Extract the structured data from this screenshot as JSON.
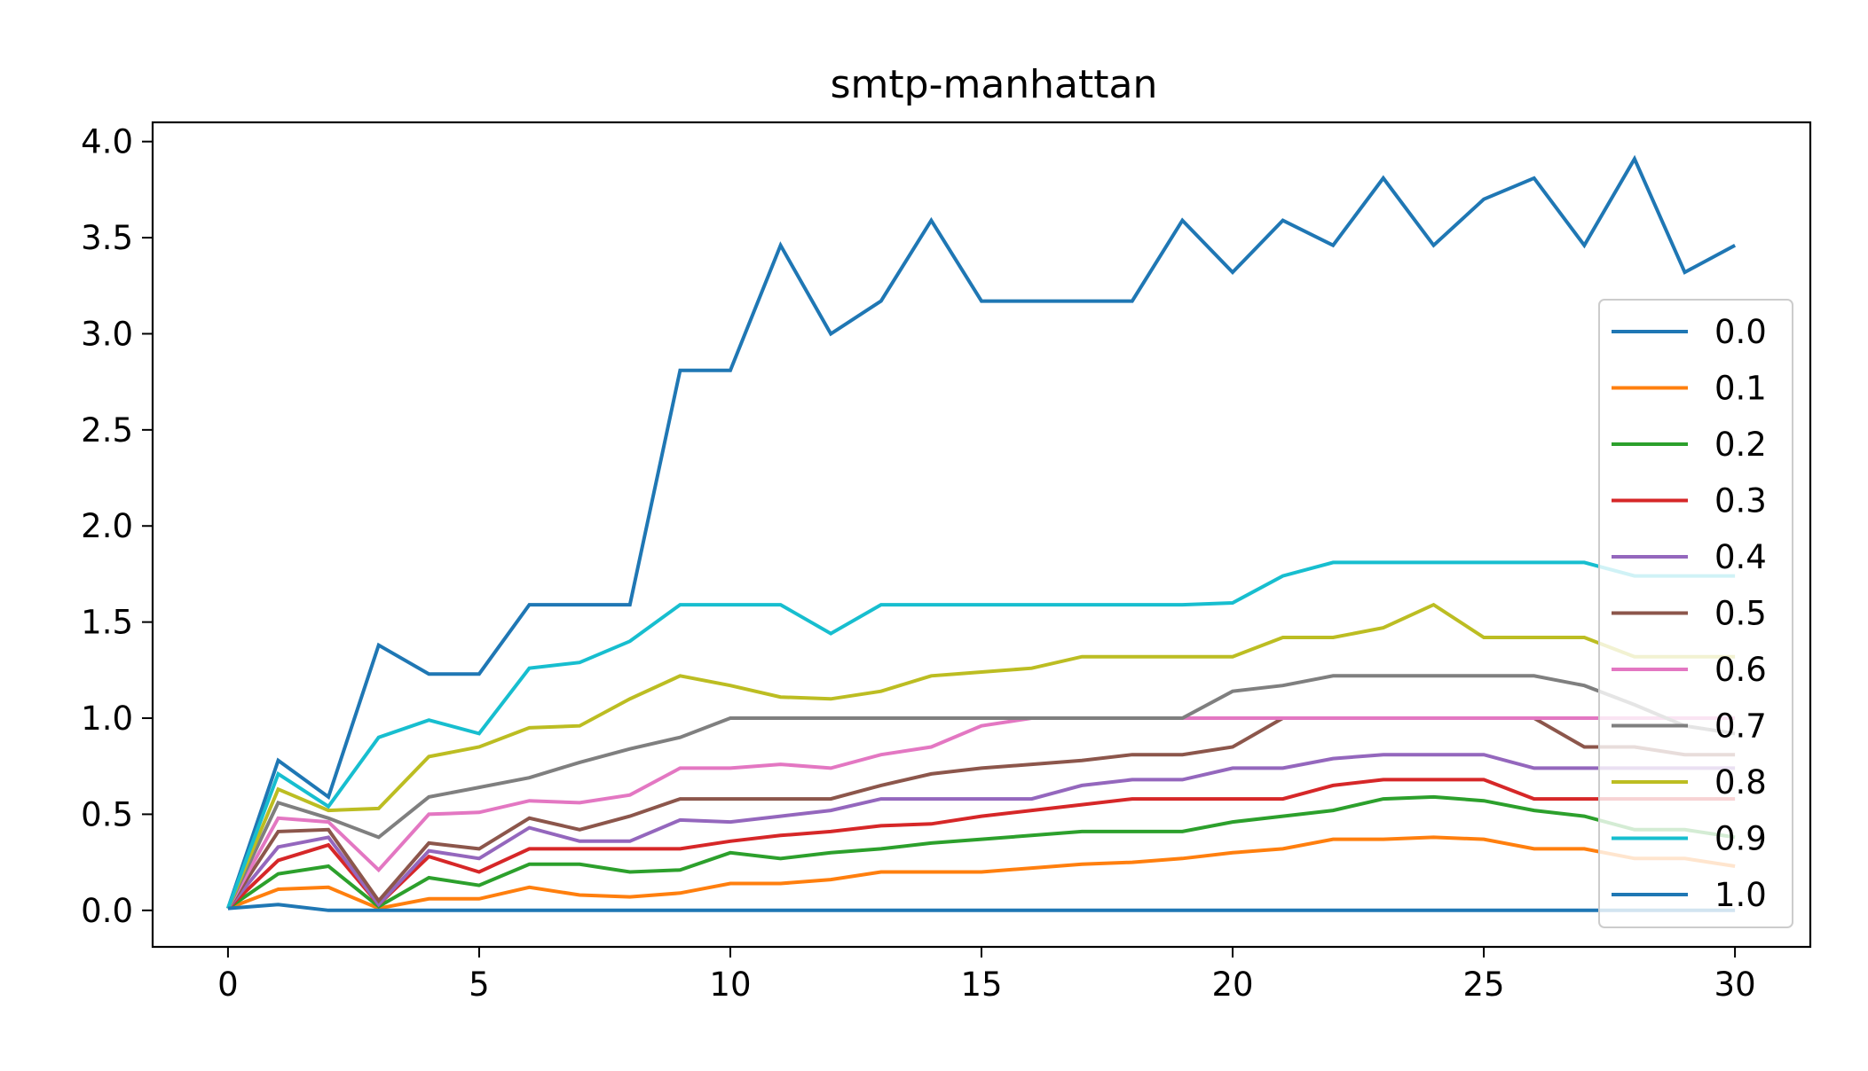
{
  "chart_data": {
    "type": "line",
    "title": "smtp-manhattan",
    "xlabel": "",
    "ylabel": "",
    "xlim": [
      -1.5,
      31.5
    ],
    "ylim": [
      -0.19,
      4.1
    ],
    "xticks": [
      0,
      5,
      10,
      15,
      20,
      25,
      30
    ],
    "yticks": [
      0.0,
      0.5,
      1.0,
      1.5,
      2.0,
      2.5,
      3.0,
      3.5,
      4.0
    ],
    "xtick_labels": [
      "0",
      "5",
      "10",
      "15",
      "20",
      "25",
      "30"
    ],
    "ytick_labels": [
      "0.0",
      "0.5",
      "1.0",
      "1.5",
      "2.0",
      "2.5",
      "3.0",
      "3.5",
      "4.0"
    ],
    "legend_position": "right",
    "grid": false,
    "x": [
      0,
      1,
      2,
      3,
      4,
      5,
      6,
      7,
      8,
      9,
      10,
      11,
      12,
      13,
      14,
      15,
      16,
      17,
      18,
      19,
      20,
      21,
      22,
      23,
      24,
      25,
      26,
      27,
      28,
      29,
      30
    ],
    "series": [
      {
        "name": "0.0",
        "color": "#1f77b4",
        "values": [
          0.01,
          0.78,
          0.59,
          1.38,
          1.23,
          1.23,
          1.59,
          1.59,
          1.59,
          2.81,
          2.81,
          3.46,
          3.0,
          3.17,
          3.59,
          3.17,
          3.17,
          3.17,
          3.17,
          3.59,
          3.32,
          3.59,
          3.46,
          3.81,
          3.46,
          3.7,
          3.81,
          3.46,
          3.91,
          3.32,
          3.46
        ]
      },
      {
        "name": "0.1",
        "color": "#ff7f0e",
        "values": [
          0.01,
          0.11,
          0.12,
          0.01,
          0.06,
          0.06,
          0.12,
          0.08,
          0.07,
          0.09,
          0.14,
          0.14,
          0.16,
          0.2,
          0.2,
          0.2,
          0.22,
          0.24,
          0.25,
          0.27,
          0.3,
          0.32,
          0.37,
          0.37,
          0.38,
          0.37,
          0.32,
          0.32,
          0.27,
          0.27,
          0.23
        ]
      },
      {
        "name": "0.2",
        "color": "#2ca02c",
        "values": [
          0.01,
          0.19,
          0.23,
          0.02,
          0.17,
          0.13,
          0.24,
          0.24,
          0.2,
          0.21,
          0.3,
          0.27,
          0.3,
          0.32,
          0.35,
          0.37,
          0.39,
          0.41,
          0.41,
          0.41,
          0.46,
          0.49,
          0.52,
          0.58,
          0.59,
          0.57,
          0.52,
          0.49,
          0.42,
          0.42,
          0.38
        ]
      },
      {
        "name": "0.3",
        "color": "#d62728",
        "values": [
          0.01,
          0.26,
          0.34,
          0.03,
          0.28,
          0.2,
          0.32,
          0.32,
          0.32,
          0.32,
          0.36,
          0.39,
          0.41,
          0.44,
          0.45,
          0.49,
          0.52,
          0.55,
          0.58,
          0.58,
          0.58,
          0.58,
          0.65,
          0.68,
          0.68,
          0.68,
          0.58,
          0.58,
          0.58,
          0.58,
          0.58
        ]
      },
      {
        "name": "0.4",
        "color": "#9467bd",
        "values": [
          0.01,
          0.33,
          0.38,
          0.03,
          0.31,
          0.27,
          0.43,
          0.36,
          0.36,
          0.47,
          0.46,
          0.49,
          0.52,
          0.58,
          0.58,
          0.58,
          0.58,
          0.65,
          0.68,
          0.68,
          0.74,
          0.74,
          0.79,
          0.81,
          0.81,
          0.81,
          0.74,
          0.74,
          0.74,
          0.74,
          0.74
        ]
      },
      {
        "name": "0.5",
        "color": "#8c564b",
        "values": [
          0.01,
          0.41,
          0.42,
          0.05,
          0.35,
          0.32,
          0.48,
          0.42,
          0.49,
          0.58,
          0.58,
          0.58,
          0.58,
          0.65,
          0.71,
          0.74,
          0.76,
          0.78,
          0.81,
          0.81,
          0.85,
          1.0,
          1.0,
          1.0,
          1.0,
          1.0,
          1.0,
          0.85,
          0.85,
          0.81,
          0.81
        ]
      },
      {
        "name": "0.6",
        "color": "#e377c2",
        "values": [
          0.01,
          0.48,
          0.46,
          0.21,
          0.5,
          0.51,
          0.57,
          0.56,
          0.6,
          0.74,
          0.74,
          0.76,
          0.74,
          0.81,
          0.85,
          0.96,
          1.0,
          1.0,
          1.0,
          1.0,
          1.0,
          1.0,
          1.0,
          1.0,
          1.0,
          1.0,
          1.0,
          1.0,
          1.0,
          1.0,
          1.0
        ]
      },
      {
        "name": "0.7",
        "color": "#7f7f7f",
        "values": [
          0.01,
          0.56,
          0.48,
          0.38,
          0.59,
          0.64,
          0.69,
          0.77,
          0.84,
          0.9,
          1.0,
          1.0,
          1.0,
          1.0,
          1.0,
          1.0,
          1.0,
          1.0,
          1.0,
          1.0,
          1.14,
          1.17,
          1.22,
          1.22,
          1.22,
          1.22,
          1.22,
          1.17,
          1.07,
          0.96,
          0.92
        ]
      },
      {
        "name": "0.8",
        "color": "#bcbd22",
        "values": [
          0.01,
          0.63,
          0.52,
          0.53,
          0.8,
          0.85,
          0.95,
          0.96,
          1.1,
          1.22,
          1.17,
          1.11,
          1.1,
          1.14,
          1.22,
          1.24,
          1.26,
          1.32,
          1.32,
          1.32,
          1.32,
          1.42,
          1.42,
          1.47,
          1.59,
          1.42,
          1.42,
          1.42,
          1.32,
          1.32,
          1.32
        ]
      },
      {
        "name": "0.9",
        "color": "#17becf",
        "values": [
          0.01,
          0.71,
          0.54,
          0.9,
          0.99,
          0.92,
          1.26,
          1.29,
          1.4,
          1.59,
          1.59,
          1.59,
          1.44,
          1.59,
          1.59,
          1.59,
          1.59,
          1.59,
          1.59,
          1.59,
          1.6,
          1.74,
          1.81,
          1.81,
          1.81,
          1.81,
          1.81,
          1.81,
          1.74,
          1.74,
          1.74
        ]
      },
      {
        "name": "1.0",
        "color": "#1f77b4",
        "values": [
          0.01,
          0.03,
          0.0,
          0.0,
          0.0,
          0.0,
          0.0,
          0.0,
          0.0,
          0.0,
          0.0,
          0.0,
          0.0,
          0.0,
          0.0,
          0.0,
          0.0,
          0.0,
          0.0,
          0.0,
          0.0,
          0.0,
          0.0,
          0.0,
          0.0,
          0.0,
          0.0,
          0.0,
          0.0,
          0.0,
          0.0
        ]
      }
    ]
  }
}
